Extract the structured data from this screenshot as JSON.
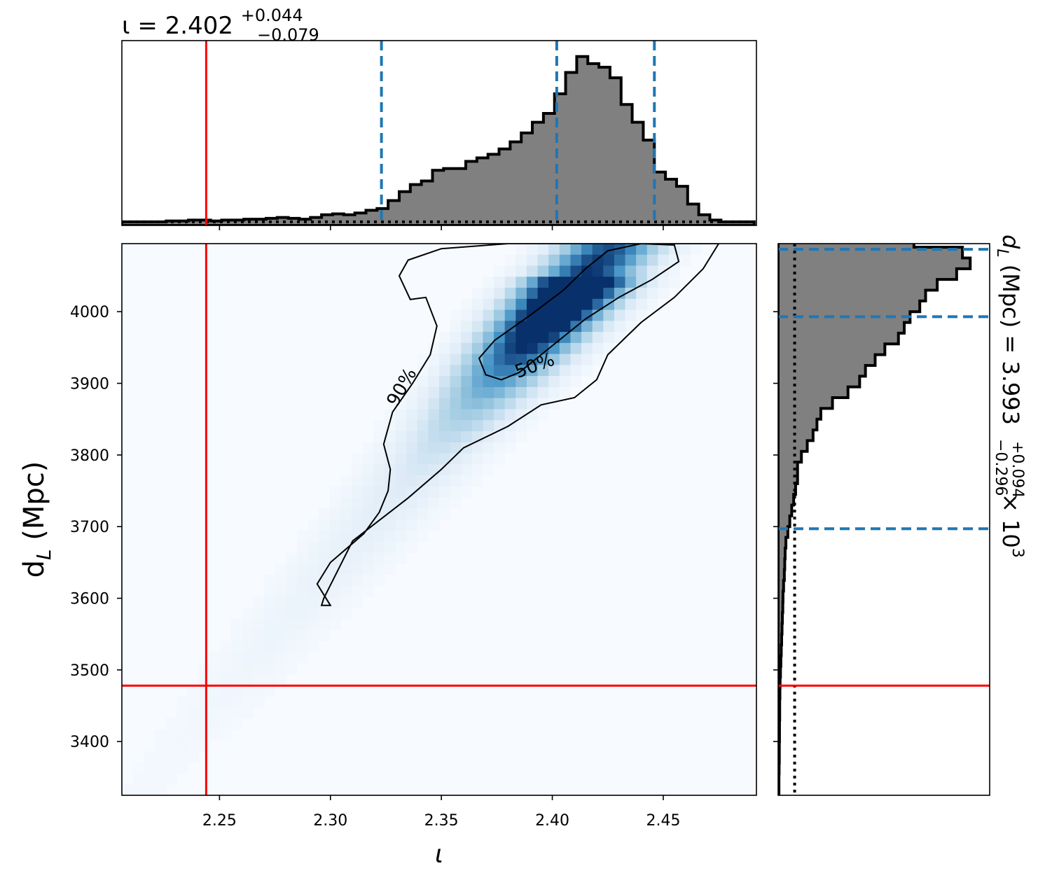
{
  "chart_data": [
    {
      "panel": "top-marginal",
      "type": "histogram",
      "title": {
        "param": "ι",
        "median": "2.402",
        "plus": "+0.044",
        "minus": "−0.079"
      },
      "xlim": [
        2.206,
        2.492
      ],
      "bins": [
        [
          2.206,
          0.02
        ],
        [
          2.211,
          0.02
        ],
        [
          2.216,
          0.02
        ],
        [
          2.221,
          0.02
        ],
        [
          2.226,
          0.025
        ],
        [
          2.231,
          0.025
        ],
        [
          2.236,
          0.03
        ],
        [
          2.241,
          0.03
        ],
        [
          2.246,
          0.025
        ],
        [
          2.251,
          0.03
        ],
        [
          2.256,
          0.03
        ],
        [
          2.261,
          0.035
        ],
        [
          2.266,
          0.035
        ],
        [
          2.271,
          0.04
        ],
        [
          2.276,
          0.045
        ],
        [
          2.281,
          0.04
        ],
        [
          2.286,
          0.035
        ],
        [
          2.291,
          0.045
        ],
        [
          2.296,
          0.06
        ],
        [
          2.301,
          0.065
        ],
        [
          2.306,
          0.06
        ],
        [
          2.311,
          0.07
        ],
        [
          2.316,
          0.085
        ],
        [
          2.321,
          0.095
        ],
        [
          2.326,
          0.14
        ],
        [
          2.331,
          0.19
        ],
        [
          2.336,
          0.23
        ],
        [
          2.341,
          0.25
        ],
        [
          2.346,
          0.31
        ],
        [
          2.351,
          0.32
        ],
        [
          2.356,
          0.32
        ],
        [
          2.361,
          0.36
        ],
        [
          2.366,
          0.38
        ],
        [
          2.371,
          0.4
        ],
        [
          2.376,
          0.43
        ],
        [
          2.381,
          0.47
        ],
        [
          2.386,
          0.52
        ],
        [
          2.391,
          0.58
        ],
        [
          2.396,
          0.63
        ],
        [
          2.401,
          0.74
        ],
        [
          2.406,
          0.86
        ],
        [
          2.411,
          0.95
        ],
        [
          2.416,
          0.91
        ],
        [
          2.421,
          0.89
        ],
        [
          2.426,
          0.83
        ],
        [
          2.431,
          0.68
        ],
        [
          2.436,
          0.58
        ],
        [
          2.441,
          0.48
        ],
        [
          2.446,
          0.3
        ],
        [
          2.451,
          0.26
        ],
        [
          2.456,
          0.22
        ],
        [
          2.461,
          0.12
        ],
        [
          2.466,
          0.06
        ],
        [
          2.471,
          0.03
        ],
        [
          2.476,
          0.02
        ],
        [
          2.481,
          0.02
        ],
        [
          2.486,
          0.02
        ]
      ],
      "bin_width": 0.005,
      "quantiles": [
        2.323,
        2.402,
        2.446
      ],
      "true_value": 2.244,
      "prior_level": 0.02
    },
    {
      "panel": "joint",
      "type": "heatmap",
      "xlabel": "ι",
      "ylabel": "d_L (Mpc)",
      "xlim": [
        2.206,
        2.492
      ],
      "ylim": [
        3325,
        4095
      ],
      "xticks": [
        "2.25",
        "2.30",
        "2.35",
        "2.40",
        "2.45"
      ],
      "xtick_values": [
        2.25,
        2.3,
        2.35,
        2.4,
        2.45
      ],
      "yticks": [
        "3400",
        "3500",
        "3600",
        "3700",
        "3800",
        "3900",
        "4000"
      ],
      "ytick_values": [
        3400,
        3500,
        3600,
        3700,
        3800,
        3900,
        4000
      ],
      "true_value": {
        "x": 2.244,
        "y": 3478
      },
      "contours": [
        {
          "label": "90%",
          "label_at": [
            2.332,
            3895
          ],
          "label_angle": -60,
          "points": [
            [
              2.336,
              4017
            ],
            [
              2.331,
              4050
            ],
            [
              2.335,
              4072
            ],
            [
              2.35,
              4088
            ],
            [
              2.38,
              4095
            ],
            [
              2.43,
              4095
            ],
            [
              2.475,
              4095
            ],
            [
              2.468,
              4060
            ],
            [
              2.455,
              4020
            ],
            [
              2.44,
              3985
            ],
            [
              2.425,
              3940
            ],
            [
              2.42,
              3905
            ],
            [
              2.41,
              3880
            ],
            [
              2.395,
              3870
            ],
            [
              2.38,
              3840
            ],
            [
              2.36,
              3810
            ],
            [
              2.35,
              3780
            ],
            [
              2.335,
              3740
            ],
            [
              2.31,
              3680
            ],
            [
              2.297,
              3600
            ],
            [
              2.296,
              3590
            ],
            [
              2.3,
              3590
            ],
            [
              2.294,
              3620
            ],
            [
              2.3,
              3650
            ],
            [
              2.315,
              3690
            ],
            [
              2.322,
              3720
            ],
            [
              2.326,
              3750
            ],
            [
              2.327,
              3780
            ],
            [
              2.324,
              3815
            ],
            [
              2.328,
              3860
            ],
            [
              2.337,
              3900
            ],
            [
              2.345,
              3940
            ],
            [
              2.348,
              3980
            ],
            [
              2.343,
              4020
            ],
            [
              2.336,
              4017
            ]
          ]
        },
        {
          "label": "50%",
          "label_at": [
            2.392,
            3925
          ],
          "label_angle": -20,
          "points": [
            [
              2.377,
              3905
            ],
            [
              2.37,
              3912
            ],
            [
              2.367,
              3935
            ],
            [
              2.374,
              3960
            ],
            [
              2.39,
              3995
            ],
            [
              2.405,
              4030
            ],
            [
              2.415,
              4060
            ],
            [
              2.425,
              4085
            ],
            [
              2.44,
              4095
            ],
            [
              2.455,
              4093
            ],
            [
              2.457,
              4070
            ],
            [
              2.445,
              4045
            ],
            [
              2.43,
              4020
            ],
            [
              2.415,
              3990
            ],
            [
              2.405,
              3965
            ],
            [
              2.395,
              3940
            ],
            [
              2.385,
              3915
            ],
            [
              2.377,
              3905
            ]
          ]
        }
      ],
      "density_peak": {
        "x": 2.415,
        "y": 4045
      },
      "colormap": [
        "#f7fbff",
        "#deebf7",
        "#9ecae1",
        "#4292c6",
        "#08306b"
      ]
    },
    {
      "panel": "right-marginal",
      "type": "histogram",
      "orientation": "horizontal",
      "title": {
        "param": "d_L (Mpc)",
        "median": "3.993",
        "plus": "+0.094",
        "minus": "−0.296",
        "scale": "× 10",
        "scale_exp": "3"
      },
      "ylim": [
        3325,
        4095
      ],
      "bins": [
        [
          3325,
          0.004
        ],
        [
          3340,
          0.004
        ],
        [
          3355,
          0.005
        ],
        [
          3370,
          0.006
        ],
        [
          3385,
          0.006
        ],
        [
          3400,
          0.007
        ],
        [
          3415,
          0.007
        ],
        [
          3430,
          0.008
        ],
        [
          3445,
          0.008
        ],
        [
          3460,
          0.009
        ],
        [
          3475,
          0.01
        ],
        [
          3490,
          0.012
        ],
        [
          3505,
          0.014
        ],
        [
          3520,
          0.016
        ],
        [
          3535,
          0.018
        ],
        [
          3550,
          0.02
        ],
        [
          3565,
          0.022
        ],
        [
          3580,
          0.024
        ],
        [
          3595,
          0.025
        ],
        [
          3610,
          0.028
        ],
        [
          3625,
          0.032
        ],
        [
          3640,
          0.034
        ],
        [
          3655,
          0.036
        ],
        [
          3670,
          0.04
        ],
        [
          3685,
          0.05
        ],
        [
          3700,
          0.06
        ],
        [
          3715,
          0.07
        ],
        [
          3730,
          0.08
        ],
        [
          3745,
          0.09
        ],
        [
          3760,
          0.1
        ],
        [
          3775,
          0.1
        ],
        [
          3790,
          0.12
        ],
        [
          3805,
          0.15
        ],
        [
          3820,
          0.18
        ],
        [
          3835,
          0.2
        ],
        [
          3850,
          0.22
        ],
        [
          3865,
          0.28
        ],
        [
          3880,
          0.36
        ],
        [
          3895,
          0.42
        ],
        [
          3910,
          0.45
        ],
        [
          3925,
          0.5
        ],
        [
          3940,
          0.55
        ],
        [
          3955,
          0.62
        ],
        [
          3970,
          0.65
        ],
        [
          3985,
          0.68
        ],
        [
          4000,
          0.73
        ],
        [
          4015,
          0.76
        ],
        [
          4030,
          0.82
        ],
        [
          4045,
          0.92
        ],
        [
          4060,
          0.99
        ],
        [
          4075,
          0.95
        ],
        [
          4090,
          0.7
        ]
      ],
      "bin_width": 15,
      "quantiles": [
        3697,
        3993,
        4087
      ],
      "true_value": 3478,
      "prior_level": 0.085
    }
  ],
  "colors": {
    "hist_fill": "#808080",
    "quantile_line": "#1f77b4",
    "truth_line": "#ff0000"
  }
}
